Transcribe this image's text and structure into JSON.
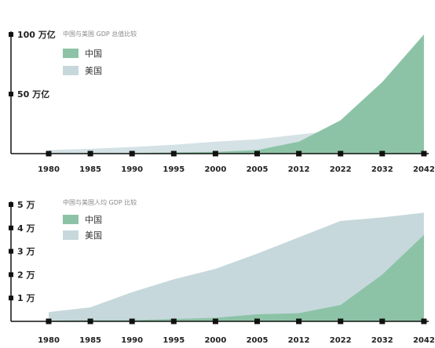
{
  "chart_data": [
    {
      "type": "area",
      "title": "中国与美国 GDP 总值比较",
      "xlabel": "",
      "ylabel": "",
      "categories": [
        "1980",
        "1985",
        "1990",
        "1995",
        "2000",
        "2005",
        "2012",
        "2022",
        "2032",
        "2042"
      ],
      "y_ticks": [
        {
          "value": 50,
          "label": "50 万亿"
        },
        {
          "value": 100,
          "label": "100 万亿"
        }
      ],
      "ylim": [
        0,
        100
      ],
      "grid": false,
      "legend": "top-left",
      "series": [
        {
          "name": "中国",
          "color": "#8cc3a6",
          "values": [
            0.3,
            0.5,
            0.5,
            1,
            1.5,
            3,
            10,
            28,
            60,
            100
          ]
        },
        {
          "name": "美国",
          "color": "#c6d8dc",
          "values": [
            3,
            4,
            5.5,
            7.5,
            10,
            12,
            16,
            20,
            22,
            25
          ]
        }
      ]
    },
    {
      "type": "area",
      "title": "中国与美国人均 GDP 比较",
      "xlabel": "",
      "ylabel": "",
      "categories": [
        "1980",
        "1985",
        "1990",
        "1995",
        "2000",
        "2005",
        "2012",
        "2022",
        "2032",
        "2042"
      ],
      "y_ticks": [
        {
          "value": 1,
          "label": "1 万"
        },
        {
          "value": 2,
          "label": "2 万"
        },
        {
          "value": 3,
          "label": "3 万"
        },
        {
          "value": 4,
          "label": "4 万"
        },
        {
          "value": 5,
          "label": "5 万"
        }
      ],
      "ylim": [
        0,
        5
      ],
      "grid": false,
      "legend": "top-left",
      "series": [
        {
          "name": "中国",
          "color": "#8cc3a6",
          "values": [
            0.03,
            0.05,
            0.05,
            0.1,
            0.15,
            0.3,
            0.35,
            0.7,
            2,
            3.7
          ]
        },
        {
          "name": "美国",
          "color": "#c6d8dc",
          "values": [
            0.4,
            0.6,
            1.25,
            1.8,
            2.25,
            2.9,
            3.6,
            4.3,
            4.45,
            4.65
          ]
        }
      ]
    }
  ]
}
